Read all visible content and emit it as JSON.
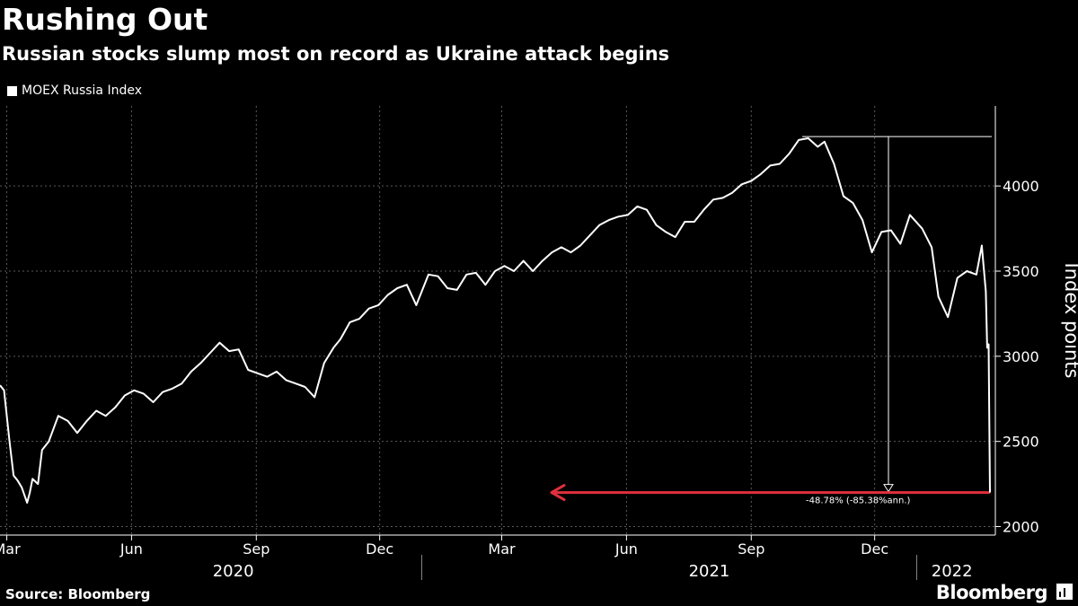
{
  "header": {
    "title": "Rushing Out",
    "subtitle": "Russian stocks slump most on record as Ukraine attack begins"
  },
  "footer": {
    "source": "Source: Bloomberg",
    "brand": "Bloomberg"
  },
  "colors": {
    "background": "#000000",
    "line": "#ffffff",
    "grid": "#666666",
    "annotation_arrow": "#e0303c"
  },
  "chart_data": {
    "type": "line",
    "title": "Rushing Out",
    "subtitle": "Russian stocks slump most on record as Ukraine attack begins",
    "ylabel": "Index points",
    "ylim": [
      1950,
      4470
    ],
    "yticks": [
      2000,
      2500,
      3000,
      3500,
      4000
    ],
    "ytick_labels": [
      "2000",
      "2500",
      "3000",
      "3500",
      "4000"
    ],
    "y_axis_side": "right",
    "grid": true,
    "legend_placement": "top-left",
    "x_range": [
      "2020-02-25",
      "2022-02-28"
    ],
    "xticks": [
      {
        "date": "2020-03-01",
        "label": "Mar"
      },
      {
        "date": "2020-06-01",
        "label": "Jun"
      },
      {
        "date": "2020-09-01",
        "label": "Sep"
      },
      {
        "date": "2020-12-01",
        "label": "Dec"
      },
      {
        "date": "2021-03-01",
        "label": "Mar"
      },
      {
        "date": "2021-06-01",
        "label": "Jun"
      },
      {
        "date": "2021-09-01",
        "label": "Sep"
      },
      {
        "date": "2021-12-01",
        "label": "Dec"
      }
    ],
    "year_labels": [
      {
        "label": "2020",
        "center": "2020-08-15"
      },
      {
        "label": "2021",
        "center": "2021-08-01"
      },
      {
        "label": "2022",
        "center": "2022-01-27"
      }
    ],
    "year_dividers": [
      "2021-01-01",
      "2022-01-01"
    ],
    "series": [
      {
        "name": "MOEX Russia Index",
        "x": [
          "2020-02-25",
          "2020-02-28",
          "2020-03-03",
          "2020-03-06",
          "2020-03-09",
          "2020-03-12",
          "2020-03-16",
          "2020-03-18",
          "2020-03-20",
          "2020-03-24",
          "2020-03-27",
          "2020-04-01",
          "2020-04-08",
          "2020-04-15",
          "2020-04-22",
          "2020-04-29",
          "2020-05-06",
          "2020-05-13",
          "2020-05-20",
          "2020-05-27",
          "2020-06-03",
          "2020-06-10",
          "2020-06-17",
          "2020-06-24",
          "2020-07-01",
          "2020-07-08",
          "2020-07-15",
          "2020-07-22",
          "2020-07-29",
          "2020-08-05",
          "2020-08-12",
          "2020-08-19",
          "2020-08-26",
          "2020-09-02",
          "2020-09-09",
          "2020-09-16",
          "2020-09-23",
          "2020-09-30",
          "2020-10-07",
          "2020-10-14",
          "2020-10-21",
          "2020-10-28",
          "2020-11-02",
          "2020-11-09",
          "2020-11-16",
          "2020-11-23",
          "2020-11-30",
          "2020-12-07",
          "2020-12-14",
          "2020-12-21",
          "2020-12-28",
          "2021-01-06",
          "2021-01-13",
          "2021-01-20",
          "2021-01-27",
          "2021-02-03",
          "2021-02-10",
          "2021-02-17",
          "2021-02-24",
          "2021-03-03",
          "2021-03-10",
          "2021-03-17",
          "2021-03-24",
          "2021-03-31",
          "2021-04-07",
          "2021-04-14",
          "2021-04-21",
          "2021-04-28",
          "2021-05-05",
          "2021-05-12",
          "2021-05-19",
          "2021-05-26",
          "2021-06-02",
          "2021-06-09",
          "2021-06-16",
          "2021-06-23",
          "2021-06-30",
          "2021-07-07",
          "2021-07-14",
          "2021-07-21",
          "2021-07-28",
          "2021-08-04",
          "2021-08-11",
          "2021-08-18",
          "2021-08-25",
          "2021-09-01",
          "2021-09-08",
          "2021-09-15",
          "2021-09-22",
          "2021-09-29",
          "2021-10-06",
          "2021-10-13",
          "2021-10-20",
          "2021-10-25",
          "2021-11-01",
          "2021-11-08",
          "2021-11-15",
          "2021-11-22",
          "2021-11-29",
          "2021-12-06",
          "2021-12-13",
          "2021-12-20",
          "2021-12-27",
          "2022-01-05",
          "2022-01-12",
          "2022-01-17",
          "2022-01-24",
          "2022-01-31",
          "2022-02-07",
          "2022-02-14",
          "2022-02-18",
          "2022-02-21",
          "2022-02-22",
          "2022-02-23",
          "2022-02-24"
        ],
        "values": [
          2830,
          2800,
          2500,
          2300,
          2270,
          2230,
          2140,
          2200,
          2280,
          2250,
          2450,
          2500,
          2650,
          2620,
          2550,
          2620,
          2680,
          2650,
          2700,
          2770,
          2800,
          2780,
          2730,
          2790,
          2810,
          2840,
          2910,
          2960,
          3020,
          3080,
          3030,
          3040,
          2920,
          2900,
          2880,
          2910,
          2860,
          2840,
          2820,
          2760,
          2960,
          3050,
          3100,
          3200,
          3220,
          3280,
          3300,
          3360,
          3400,
          3420,
          3300,
          3480,
          3470,
          3400,
          3390,
          3480,
          3490,
          3420,
          3500,
          3530,
          3500,
          3560,
          3500,
          3560,
          3610,
          3640,
          3610,
          3650,
          3710,
          3770,
          3800,
          3820,
          3830,
          3880,
          3860,
          3770,
          3730,
          3700,
          3790,
          3790,
          3860,
          3920,
          3930,
          3960,
          4010,
          4030,
          4070,
          4120,
          4130,
          4190,
          4270,
          4280,
          4230,
          4260,
          4130,
          3940,
          3900,
          3800,
          3610,
          3730,
          3740,
          3660,
          3830,
          3750,
          3640,
          3350,
          3230,
          3460,
          3500,
          3480,
          3650,
          3380,
          3050,
          3070,
          2200
        ]
      }
    ],
    "annotations": [
      {
        "type": "range",
        "from": 4290,
        "to": 2200,
        "label": "-48.78% (-85.38%ann.)"
      }
    ]
  }
}
